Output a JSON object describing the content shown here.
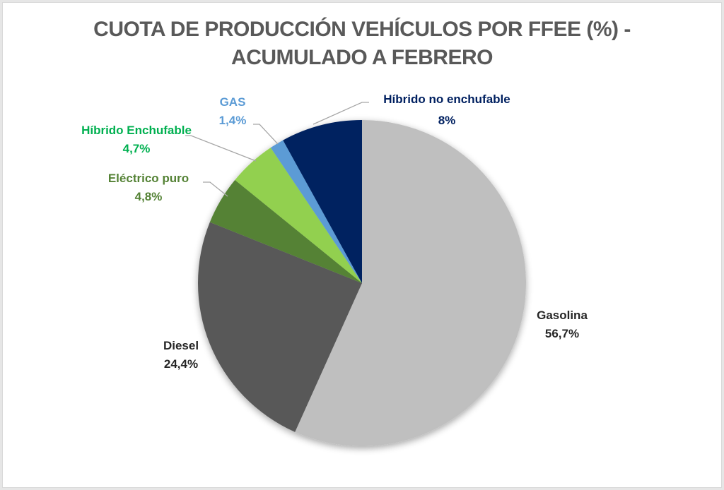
{
  "chart_data": {
    "type": "pie",
    "title": "CUOTA DE PRODUCCIÓN VEHÍCULOS POR FFEE (%) - ACUMULADO A FEBRERO",
    "title_lines": [
      "CUOTA DE PRODUCCIÓN VEHÍCULOS POR FFEE (%) -",
      "ACUMULADO A FEBRERO"
    ],
    "start_angle": "top, clockwise",
    "legend": "none (data labels)",
    "slices": [
      {
        "label": "Gasolina",
        "value": 56.7,
        "value_text": "56,7%",
        "color": "#bfbfbf",
        "label_color": "#262626"
      },
      {
        "label": "Diesel",
        "value": 24.4,
        "value_text": "24,4%",
        "color": "#595959",
        "label_color": "#262626"
      },
      {
        "label": "Eléctrico puro",
        "value": 4.8,
        "value_text": "4,8%",
        "color": "#548235",
        "label_color": "#548235"
      },
      {
        "label": "Híbrido Enchufable",
        "value": 4.7,
        "value_text": "4,7%",
        "color": "#92d050",
        "label_color": "#00b050"
      },
      {
        "label": "GAS",
        "value": 1.4,
        "value_text": "1,4%",
        "color": "#5b9bd5",
        "label_color": "#5b9bd5"
      },
      {
        "label": "Híbrido no enchufable",
        "value": 8,
        "value_text": "8%",
        "color": "#002060",
        "label_color": "#002060"
      }
    ]
  }
}
